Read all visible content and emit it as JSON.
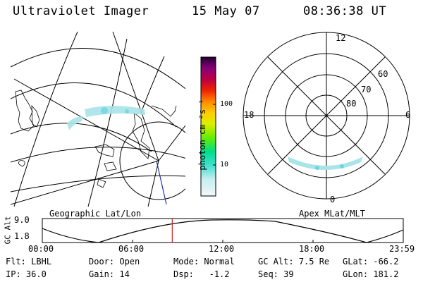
{
  "header": {
    "instrument": "Ultraviolet Imager",
    "date": "15 May 07",
    "time": "08:36:38 UT"
  },
  "left_panel": {
    "label": "Geographic Lat/Lon"
  },
  "right_panel": {
    "label": "Apex MLat/MLT",
    "mlt_labels": {
      "top": "12",
      "bottom": "0",
      "left": "18",
      "right": "6"
    },
    "lat_labels": [
      "60",
      "70",
      "80"
    ]
  },
  "colorbar": {
    "unit_label": "photon cm⁻²s⁻¹",
    "ticks": [
      "100",
      "10"
    ]
  },
  "altitude_plot": {
    "ylabel": "GC Alt",
    "ymax_label": "9.0",
    "ymin_label": "1.8",
    "x_ticks": [
      "00:00",
      "06:00",
      "12:00",
      "18:00",
      "23:59"
    ],
    "current_time_fraction": 0.36
  },
  "status": {
    "filter_label": "Flt:",
    "filter": "LBHL",
    "ip_label": "IP:",
    "ip": "36.0",
    "door_label": "Door:",
    "door": "Open",
    "gain_label": "Gain:",
    "gain": "14",
    "mode_label": "Mode:",
    "mode": "Normal",
    "dsp_label": "Dsp:",
    "dsp": "-1.2",
    "gcalt_label": "GC Alt:",
    "gcalt": "7.5 Re",
    "seq_label": "Seq:",
    "seq": "39",
    "glat_label": "GLat:",
    "glat": "-66.2",
    "glon_label": "GLon:",
    "glon": "181.2"
  },
  "colors": {
    "current_time_marker": "#cc2222",
    "track_line": "#2233aa",
    "aurora": "#a8e4e8"
  }
}
